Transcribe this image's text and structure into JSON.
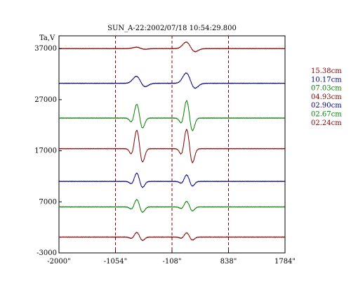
{
  "chart_data": {
    "type": "line",
    "title": "SUN_A-22:2002/07/18 10:54:29.800",
    "ylabel": "Ta,V",
    "xlim": [
      -2000,
      1784
    ],
    "ylim": [
      -3000,
      39500
    ],
    "x_ticks": [
      -2000,
      -1054,
      -108,
      838,
      1784
    ],
    "x_tick_labels": [
      "-2000\"",
      "-1054\"",
      "-108\"",
      "838\"",
      "1784\""
    ],
    "y_ticks": [
      -3000,
      7000,
      17000,
      27000,
      37000
    ],
    "y_tick_labels": [
      "-3000",
      "7000",
      "17000",
      "27000",
      "37000"
    ],
    "markers_x": [
      -1054,
      -108,
      838
    ],
    "grid": false,
    "legend_position": "right",
    "peaks": [
      {
        "center": -695,
        "width": 90
      },
      {
        "center": 140,
        "width": 90
      }
    ],
    "series": [
      {
        "name": "15.38cm",
        "color": "#800000",
        "baseline": 37000,
        "amps": [
          300,
          1400
        ],
        "shape": "smooth"
      },
      {
        "name": "10.17cm",
        "color": "#000080",
        "baseline": 30200,
        "amps": [
          1500,
          2200
        ],
        "shape": "smooth"
      },
      {
        "name": "07.03cm",
        "color": "#008000",
        "baseline": 23400,
        "amps": [
          3000,
          3800
        ],
        "shape": "wiggle"
      },
      {
        "name": "04.93cm",
        "color": "#800000",
        "baseline": 17400,
        "amps": [
          4000,
          4200
        ],
        "shape": "wiggle"
      },
      {
        "name": "02.90cm",
        "color": "#000080",
        "baseline": 11000,
        "amps": [
          1800,
          1400
        ],
        "shape": "wiggle"
      },
      {
        "name": "02.67cm",
        "color": "#008000",
        "baseline": 6000,
        "amps": [
          1600,
          1200
        ],
        "shape": "wiggle"
      },
      {
        "name": "02.24cm",
        "color": "#800000",
        "baseline": 100,
        "amps": [
          1000,
          900
        ],
        "shape": "wiggle"
      }
    ]
  }
}
